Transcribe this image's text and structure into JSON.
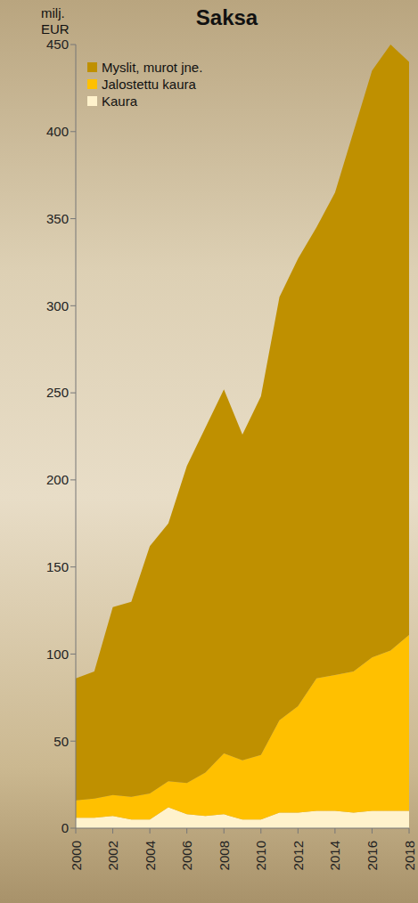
{
  "chart_data": {
    "type": "area",
    "title": "Saksa",
    "y_label": "milj. EUR",
    "stacked": true,
    "grid": false,
    "legend": "upper left",
    "x": [
      2000,
      2001,
      2002,
      2003,
      2004,
      2005,
      2006,
      2007,
      2008,
      2009,
      2010,
      2011,
      2012,
      2013,
      2014,
      2015,
      2016,
      2017,
      2018
    ],
    "series": [
      {
        "name": "Myslit, murot jne.",
        "color": "#bf9000",
        "values": [
          70,
          73,
          108,
          112,
          142,
          148,
          182,
          198,
          209,
          187,
          206,
          243,
          257,
          259,
          277,
          310,
          337,
          348,
          329
        ]
      },
      {
        "name": "Jalostettu kaura",
        "color": "#ffc000",
        "values": [
          10,
          11,
          12,
          13,
          15,
          15,
          18,
          25,
          35,
          34,
          37,
          53,
          61,
          76,
          78,
          81,
          88,
          92,
          101
        ]
      },
      {
        "name": "Kaura",
        "color": "#fff2cc",
        "values": [
          6,
          6,
          7,
          5,
          5,
          12,
          8,
          7,
          8,
          5,
          5,
          9,
          9,
          10,
          10,
          9,
          10,
          10,
          10
        ]
      }
    ],
    "xlim": [
      2000,
      2018
    ],
    "xticks": [
      2000,
      2002,
      2004,
      2006,
      2008,
      2010,
      2012,
      2014,
      2016,
      2018
    ],
    "ylim": [
      0,
      450
    ],
    "yticks": [
      0,
      50,
      100,
      150,
      200,
      250,
      300,
      350,
      400,
      450
    ]
  }
}
